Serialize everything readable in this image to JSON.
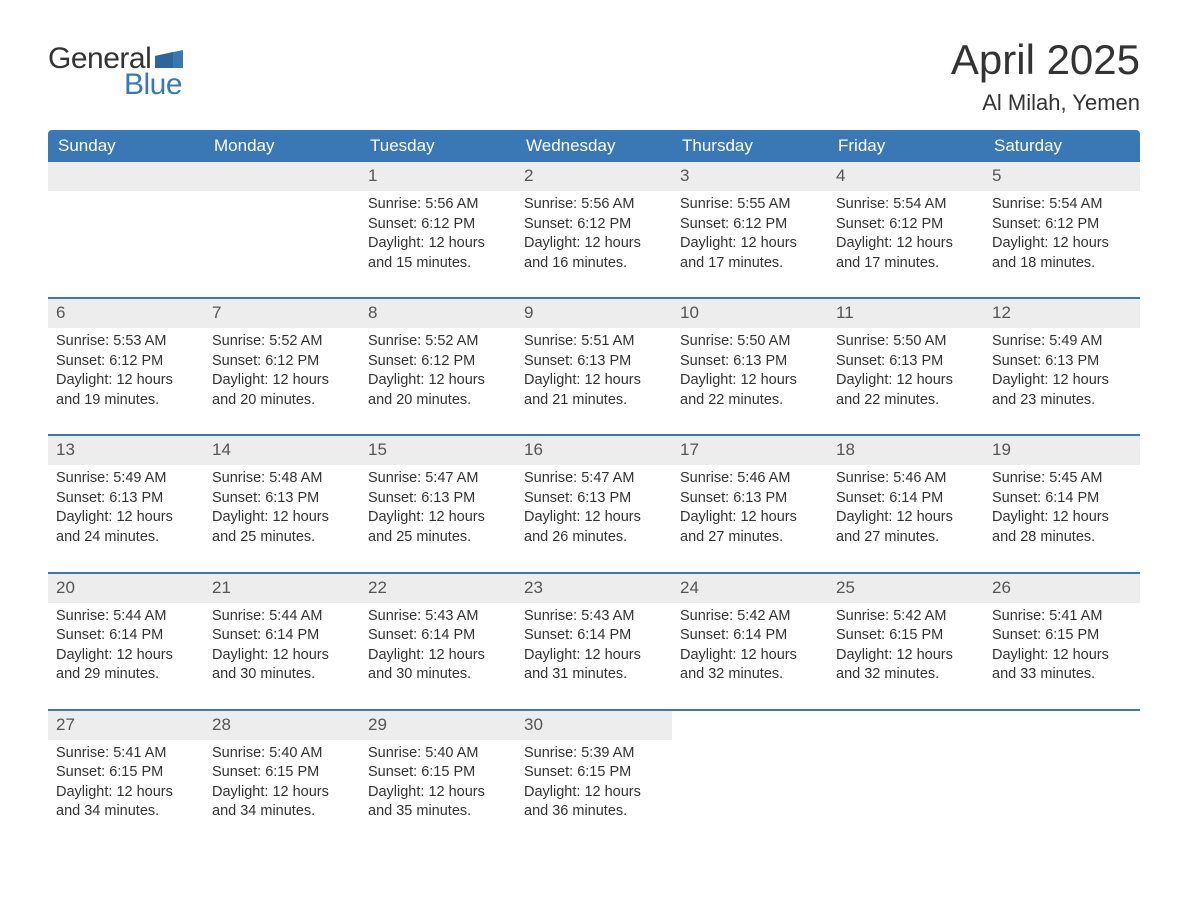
{
  "logo": {
    "general": "General",
    "blue": "Blue",
    "mark_color": "#3a78b5"
  },
  "title": "April 2025",
  "subtitle": "Al Milah, Yemen",
  "colors": {
    "header_bg": "#3a78b5",
    "header_text": "#ffffff",
    "daynum_bg": "#ededed",
    "text": "#333333",
    "rule": "#3a78b5"
  },
  "day_labels": [
    "Sunday",
    "Monday",
    "Tuesday",
    "Wednesday",
    "Thursday",
    "Friday",
    "Saturday"
  ],
  "weeks": [
    [
      {
        "n": "",
        "sunrise": "",
        "sunset": "",
        "daylight1": "",
        "daylight2": ""
      },
      {
        "n": "",
        "sunrise": "",
        "sunset": "",
        "daylight1": "",
        "daylight2": ""
      },
      {
        "n": "1",
        "sunrise": "Sunrise: 5:56 AM",
        "sunset": "Sunset: 6:12 PM",
        "daylight1": "Daylight: 12 hours",
        "daylight2": "and 15 minutes."
      },
      {
        "n": "2",
        "sunrise": "Sunrise: 5:56 AM",
        "sunset": "Sunset: 6:12 PM",
        "daylight1": "Daylight: 12 hours",
        "daylight2": "and 16 minutes."
      },
      {
        "n": "3",
        "sunrise": "Sunrise: 5:55 AM",
        "sunset": "Sunset: 6:12 PM",
        "daylight1": "Daylight: 12 hours",
        "daylight2": "and 17 minutes."
      },
      {
        "n": "4",
        "sunrise": "Sunrise: 5:54 AM",
        "sunset": "Sunset: 6:12 PM",
        "daylight1": "Daylight: 12 hours",
        "daylight2": "and 17 minutes."
      },
      {
        "n": "5",
        "sunrise": "Sunrise: 5:54 AM",
        "sunset": "Sunset: 6:12 PM",
        "daylight1": "Daylight: 12 hours",
        "daylight2": "and 18 minutes."
      }
    ],
    [
      {
        "n": "6",
        "sunrise": "Sunrise: 5:53 AM",
        "sunset": "Sunset: 6:12 PM",
        "daylight1": "Daylight: 12 hours",
        "daylight2": "and 19 minutes."
      },
      {
        "n": "7",
        "sunrise": "Sunrise: 5:52 AM",
        "sunset": "Sunset: 6:12 PM",
        "daylight1": "Daylight: 12 hours",
        "daylight2": "and 20 minutes."
      },
      {
        "n": "8",
        "sunrise": "Sunrise: 5:52 AM",
        "sunset": "Sunset: 6:12 PM",
        "daylight1": "Daylight: 12 hours",
        "daylight2": "and 20 minutes."
      },
      {
        "n": "9",
        "sunrise": "Sunrise: 5:51 AM",
        "sunset": "Sunset: 6:13 PM",
        "daylight1": "Daylight: 12 hours",
        "daylight2": "and 21 minutes."
      },
      {
        "n": "10",
        "sunrise": "Sunrise: 5:50 AM",
        "sunset": "Sunset: 6:13 PM",
        "daylight1": "Daylight: 12 hours",
        "daylight2": "and 22 minutes."
      },
      {
        "n": "11",
        "sunrise": "Sunrise: 5:50 AM",
        "sunset": "Sunset: 6:13 PM",
        "daylight1": "Daylight: 12 hours",
        "daylight2": "and 22 minutes."
      },
      {
        "n": "12",
        "sunrise": "Sunrise: 5:49 AM",
        "sunset": "Sunset: 6:13 PM",
        "daylight1": "Daylight: 12 hours",
        "daylight2": "and 23 minutes."
      }
    ],
    [
      {
        "n": "13",
        "sunrise": "Sunrise: 5:49 AM",
        "sunset": "Sunset: 6:13 PM",
        "daylight1": "Daylight: 12 hours",
        "daylight2": "and 24 minutes."
      },
      {
        "n": "14",
        "sunrise": "Sunrise: 5:48 AM",
        "sunset": "Sunset: 6:13 PM",
        "daylight1": "Daylight: 12 hours",
        "daylight2": "and 25 minutes."
      },
      {
        "n": "15",
        "sunrise": "Sunrise: 5:47 AM",
        "sunset": "Sunset: 6:13 PM",
        "daylight1": "Daylight: 12 hours",
        "daylight2": "and 25 minutes."
      },
      {
        "n": "16",
        "sunrise": "Sunrise: 5:47 AM",
        "sunset": "Sunset: 6:13 PM",
        "daylight1": "Daylight: 12 hours",
        "daylight2": "and 26 minutes."
      },
      {
        "n": "17",
        "sunrise": "Sunrise: 5:46 AM",
        "sunset": "Sunset: 6:13 PM",
        "daylight1": "Daylight: 12 hours",
        "daylight2": "and 27 minutes."
      },
      {
        "n": "18",
        "sunrise": "Sunrise: 5:46 AM",
        "sunset": "Sunset: 6:14 PM",
        "daylight1": "Daylight: 12 hours",
        "daylight2": "and 27 minutes."
      },
      {
        "n": "19",
        "sunrise": "Sunrise: 5:45 AM",
        "sunset": "Sunset: 6:14 PM",
        "daylight1": "Daylight: 12 hours",
        "daylight2": "and 28 minutes."
      }
    ],
    [
      {
        "n": "20",
        "sunrise": "Sunrise: 5:44 AM",
        "sunset": "Sunset: 6:14 PM",
        "daylight1": "Daylight: 12 hours",
        "daylight2": "and 29 minutes."
      },
      {
        "n": "21",
        "sunrise": "Sunrise: 5:44 AM",
        "sunset": "Sunset: 6:14 PM",
        "daylight1": "Daylight: 12 hours",
        "daylight2": "and 30 minutes."
      },
      {
        "n": "22",
        "sunrise": "Sunrise: 5:43 AM",
        "sunset": "Sunset: 6:14 PM",
        "daylight1": "Daylight: 12 hours",
        "daylight2": "and 30 minutes."
      },
      {
        "n": "23",
        "sunrise": "Sunrise: 5:43 AM",
        "sunset": "Sunset: 6:14 PM",
        "daylight1": "Daylight: 12 hours",
        "daylight2": "and 31 minutes."
      },
      {
        "n": "24",
        "sunrise": "Sunrise: 5:42 AM",
        "sunset": "Sunset: 6:14 PM",
        "daylight1": "Daylight: 12 hours",
        "daylight2": "and 32 minutes."
      },
      {
        "n": "25",
        "sunrise": "Sunrise: 5:42 AM",
        "sunset": "Sunset: 6:15 PM",
        "daylight1": "Daylight: 12 hours",
        "daylight2": "and 32 minutes."
      },
      {
        "n": "26",
        "sunrise": "Sunrise: 5:41 AM",
        "sunset": "Sunset: 6:15 PM",
        "daylight1": "Daylight: 12 hours",
        "daylight2": "and 33 minutes."
      }
    ],
    [
      {
        "n": "27",
        "sunrise": "Sunrise: 5:41 AM",
        "sunset": "Sunset: 6:15 PM",
        "daylight1": "Daylight: 12 hours",
        "daylight2": "and 34 minutes."
      },
      {
        "n": "28",
        "sunrise": "Sunrise: 5:40 AM",
        "sunset": "Sunset: 6:15 PM",
        "daylight1": "Daylight: 12 hours",
        "daylight2": "and 34 minutes."
      },
      {
        "n": "29",
        "sunrise": "Sunrise: 5:40 AM",
        "sunset": "Sunset: 6:15 PM",
        "daylight1": "Daylight: 12 hours",
        "daylight2": "and 35 minutes."
      },
      {
        "n": "30",
        "sunrise": "Sunrise: 5:39 AM",
        "sunset": "Sunset: 6:15 PM",
        "daylight1": "Daylight: 12 hours",
        "daylight2": "and 36 minutes."
      },
      {
        "n": "",
        "sunrise": "",
        "sunset": "",
        "daylight1": "",
        "daylight2": ""
      },
      {
        "n": "",
        "sunrise": "",
        "sunset": "",
        "daylight1": "",
        "daylight2": ""
      },
      {
        "n": "",
        "sunrise": "",
        "sunset": "",
        "daylight1": "",
        "daylight2": ""
      }
    ]
  ]
}
